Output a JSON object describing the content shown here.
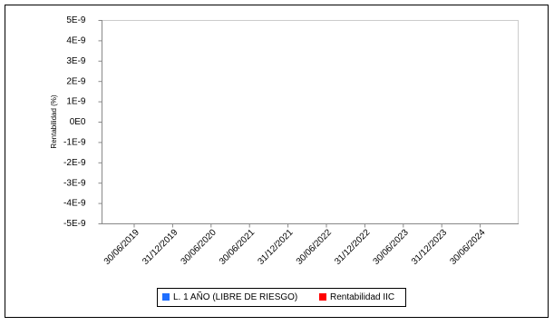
{
  "chart_data": {
    "type": "line",
    "y_label": "Rentabilidad (%)",
    "categories": [
      "30/06/2019",
      "31/12/2019",
      "30/06/2020",
      "30/06/2021",
      "31/12/2021",
      "30/06/2022",
      "31/12/2022",
      "30/06/2023",
      "31/12/2023",
      "30/06/2024"
    ],
    "series": [
      {
        "name": "L. 1 AÑO (LIBRE DE RIESGO)",
        "color": "#1f6fff",
        "values": [
          null,
          null,
          null,
          null,
          null,
          null,
          null,
          null,
          null,
          null
        ]
      },
      {
        "name": "Rentabilidad IIC",
        "color": "#ff0000",
        "values": [
          null,
          null,
          null,
          null,
          null,
          null,
          null,
          null,
          null,
          null
        ]
      }
    ],
    "ylim": [
      -5e-09,
      5e-09
    ],
    "yticks": [
      {
        "value": 5e-09,
        "label": "5E-9"
      },
      {
        "value": 4e-09,
        "label": "4E-9"
      },
      {
        "value": 3e-09,
        "label": "3E-9"
      },
      {
        "value": 2e-09,
        "label": "2E-9"
      },
      {
        "value": 1e-09,
        "label": "1E-9"
      },
      {
        "value": 0,
        "label": "0E0"
      },
      {
        "value": -1e-09,
        "label": "-1E-9"
      },
      {
        "value": -2e-09,
        "label": "-2E-9"
      },
      {
        "value": -3e-09,
        "label": "-3E-9"
      },
      {
        "value": -4e-09,
        "label": "-4E-9"
      },
      {
        "value": -5e-09,
        "label": "-5E-9"
      }
    ],
    "grid": false
  }
}
